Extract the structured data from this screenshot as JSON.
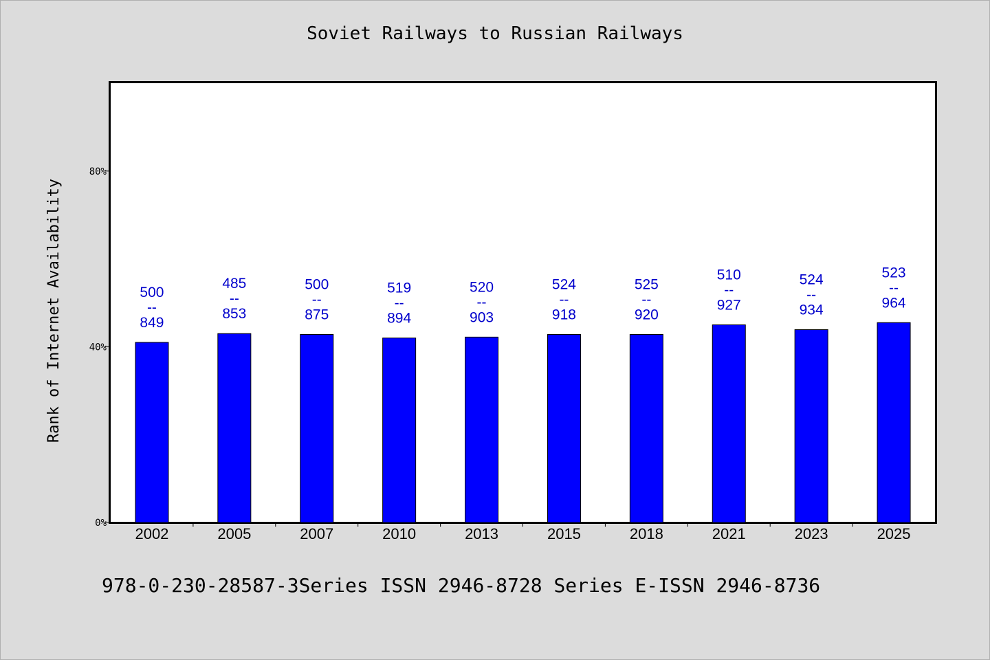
{
  "chart_data": {
    "type": "bar",
    "title": "Soviet Railways to Russian Railways",
    "xlabel": "",
    "ylabel": "Rank of Internet Availability",
    "categories": [
      "2002",
      "2005",
      "2007",
      "2010",
      "2013",
      "2015",
      "2018",
      "2021",
      "2023",
      "2025"
    ],
    "values": [
      41,
      43,
      42.8,
      42,
      42.2,
      42.8,
      42.8,
      45,
      43.9,
      45.5
    ],
    "bar_labels": [
      [
        "500",
        "--",
        "849"
      ],
      [
        "485",
        "--",
        "853"
      ],
      [
        "500",
        "--",
        "875"
      ],
      [
        "519",
        "--",
        "894"
      ],
      [
        "520",
        "--",
        "903"
      ],
      [
        "524",
        "--",
        "918"
      ],
      [
        "525",
        "--",
        "920"
      ],
      [
        "510",
        "--",
        "927"
      ],
      [
        "524",
        "--",
        "934"
      ],
      [
        "523",
        "--",
        "964"
      ]
    ],
    "ylim": [
      0,
      100
    ],
    "yticks": [
      0,
      40,
      80
    ],
    "ytick_labels": [
      "0%",
      "40%",
      "80%"
    ],
    "grid": false,
    "colors": {
      "bar": "#0000ff",
      "bar_edge": "#000000",
      "bar_label": "#0000cc"
    }
  },
  "footer": {
    "text": "978-0-230-28587-3Series ISSN 2946-8728 Series E-ISSN 2946-8736"
  }
}
